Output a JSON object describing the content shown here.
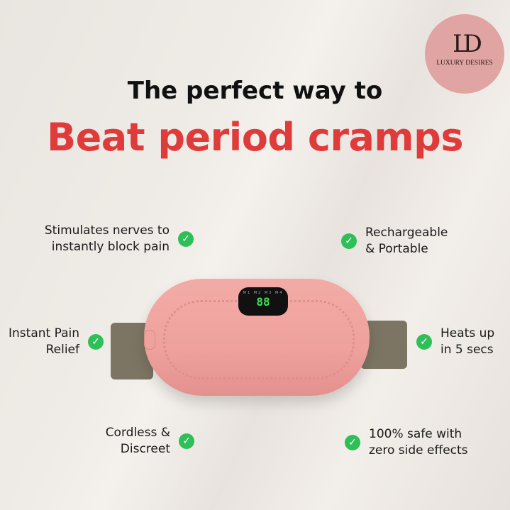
{
  "logo": {
    "monogram": "LD",
    "name": "LUXURY DESIRES",
    "color": "#e0a4a2"
  },
  "headline": {
    "line1": "The perfect way to",
    "line2": "Beat period cramps",
    "accent_color": "#e03b3b"
  },
  "features": [
    {
      "text": "Stimulates nerves to instantly block pain",
      "icon": "check-circle-icon"
    },
    {
      "text": "Rechargeable & Portable",
      "icon": "check-circle-icon"
    },
    {
      "text": "Instant Pain Relief",
      "icon": "check-circle-icon"
    },
    {
      "text": "Heats up in 5 secs",
      "icon": "check-circle-icon"
    },
    {
      "text": "Cordless & Discreet",
      "icon": "check-circle-icon"
    },
    {
      "text": "100% safe with zero side effects",
      "icon": "check-circle-icon"
    }
  ],
  "device": {
    "modes": "M1 M2 M3 M4",
    "display": "88",
    "color": "#f0a5a1"
  }
}
